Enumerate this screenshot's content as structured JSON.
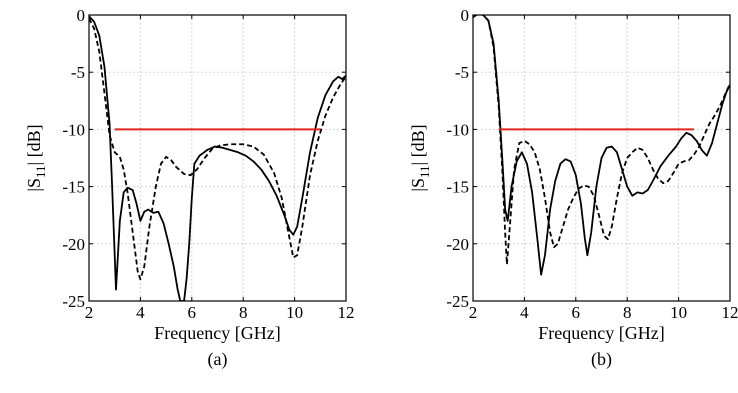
{
  "chart_data": [
    {
      "type": "line",
      "panel_label": "(a)",
      "xlabel": "Frequency [GHz]",
      "ylabel_main": "|S",
      "ylabel_sub": "11",
      "ylabel_tail": "| [dB]",
      "xlim": [
        2,
        12
      ],
      "ylim": [
        -25,
        0
      ],
      "xticks": [
        2,
        4,
        6,
        8,
        10,
        12
      ],
      "yticks": [
        0,
        -5,
        -10,
        -15,
        -20,
        -25
      ],
      "grid": true,
      "series": [
        {
          "style": "solid",
          "color": "#000000",
          "points": [
            [
              2.0,
              -0.1
            ],
            [
              2.2,
              -0.6
            ],
            [
              2.4,
              -1.8
            ],
            [
              2.6,
              -4.5
            ],
            [
              2.8,
              -9.5
            ],
            [
              2.9,
              -15.0
            ],
            [
              3.0,
              -21.0
            ],
            [
              3.05,
              -24.0
            ],
            [
              3.1,
              -22.0
            ],
            [
              3.2,
              -18.0
            ],
            [
              3.35,
              -15.5
            ],
            [
              3.5,
              -15.1
            ],
            [
              3.7,
              -15.3
            ],
            [
              3.85,
              -16.5
            ],
            [
              4.0,
              -18.0
            ],
            [
              4.15,
              -17.2
            ],
            [
              4.3,
              -17.0
            ],
            [
              4.5,
              -17.3
            ],
            [
              4.7,
              -17.2
            ],
            [
              4.9,
              -18.2
            ],
            [
              5.1,
              -20.0
            ],
            [
              5.3,
              -22.0
            ],
            [
              5.45,
              -24.0
            ],
            [
              5.55,
              -25.0
            ],
            [
              5.7,
              -25.0
            ],
            [
              5.8,
              -23.0
            ],
            [
              5.9,
              -20.0
            ],
            [
              6.0,
              -16.0
            ],
            [
              6.1,
              -13.0
            ],
            [
              6.3,
              -12.3
            ],
            [
              6.6,
              -11.8
            ],
            [
              6.9,
              -11.5
            ],
            [
              7.2,
              -11.6
            ],
            [
              7.5,
              -11.8
            ],
            [
              7.8,
              -12.0
            ],
            [
              8.1,
              -12.3
            ],
            [
              8.4,
              -12.8
            ],
            [
              8.7,
              -13.5
            ],
            [
              9.0,
              -14.5
            ],
            [
              9.3,
              -15.8
            ],
            [
              9.6,
              -17.5
            ],
            [
              9.8,
              -18.8
            ],
            [
              9.95,
              -19.2
            ],
            [
              10.1,
              -18.5
            ],
            [
              10.3,
              -16.0
            ],
            [
              10.6,
              -12.0
            ],
            [
              10.9,
              -9.0
            ],
            [
              11.2,
              -7.0
            ],
            [
              11.5,
              -5.8
            ],
            [
              11.7,
              -5.4
            ],
            [
              11.85,
              -5.6
            ],
            [
              12.0,
              -5.3
            ]
          ]
        },
        {
          "style": "dashed",
          "color": "#000000",
          "points": [
            [
              2.0,
              -0.3
            ],
            [
              2.2,
              -1.2
            ],
            [
              2.4,
              -3.2
            ],
            [
              2.6,
              -6.8
            ],
            [
              2.8,
              -10.5
            ],
            [
              3.0,
              -12.0
            ],
            [
              3.2,
              -12.4
            ],
            [
              3.35,
              -13.5
            ],
            [
              3.5,
              -15.5
            ],
            [
              3.7,
              -19.0
            ],
            [
              3.9,
              -22.5
            ],
            [
              4.0,
              -23.1
            ],
            [
              4.15,
              -22.0
            ],
            [
              4.35,
              -18.5
            ],
            [
              4.6,
              -15.0
            ],
            [
              4.8,
              -13.0
            ],
            [
              5.0,
              -12.4
            ],
            [
              5.2,
              -12.7
            ],
            [
              5.4,
              -13.3
            ],
            [
              5.7,
              -13.9
            ],
            [
              5.95,
              -14.0
            ],
            [
              6.2,
              -13.5
            ],
            [
              6.5,
              -12.5
            ],
            [
              6.8,
              -11.7
            ],
            [
              7.1,
              -11.4
            ],
            [
              7.5,
              -11.3
            ],
            [
              8.0,
              -11.3
            ],
            [
              8.4,
              -11.5
            ],
            [
              8.8,
              -12.2
            ],
            [
              9.2,
              -13.8
            ],
            [
              9.5,
              -16.0
            ],
            [
              9.8,
              -19.5
            ],
            [
              9.95,
              -21.2
            ],
            [
              10.1,
              -21.0
            ],
            [
              10.3,
              -18.5
            ],
            [
              10.6,
              -14.0
            ],
            [
              10.9,
              -11.0
            ],
            [
              11.2,
              -8.8
            ],
            [
              11.5,
              -7.2
            ],
            [
              11.8,
              -6.0
            ],
            [
              12.0,
              -5.4
            ]
          ]
        },
        {
          "style": "solid",
          "color": "#e3251b",
          "points": [
            [
              3.0,
              -10.0
            ],
            [
              11.0,
              -10.0
            ]
          ]
        }
      ]
    },
    {
      "type": "line",
      "panel_label": "(b)",
      "xlabel": "Frequency [GHz]",
      "ylabel_main": "|S",
      "ylabel_sub": "11",
      "ylabel_tail": "| [dB]",
      "xlim": [
        2,
        12
      ],
      "ylim": [
        -25,
        0
      ],
      "xticks": [
        2,
        4,
        6,
        8,
        10,
        12
      ],
      "yticks": [
        0,
        -5,
        -10,
        -15,
        -20,
        -25
      ],
      "grid": true,
      "series": [
        {
          "style": "solid",
          "color": "#000000",
          "points": [
            [
              2.0,
              -0.1
            ],
            [
              2.2,
              0.1
            ],
            [
              2.4,
              0.0
            ],
            [
              2.6,
              -0.5
            ],
            [
              2.8,
              -2.5
            ],
            [
              3.0,
              -7.5
            ],
            [
              3.15,
              -13.0
            ],
            [
              3.25,
              -17.0
            ],
            [
              3.35,
              -18.0
            ],
            [
              3.5,
              -15.0
            ],
            [
              3.7,
              -12.8
            ],
            [
              3.9,
              -12.0
            ],
            [
              4.1,
              -13.0
            ],
            [
              4.3,
              -15.5
            ],
            [
              4.5,
              -19.5
            ],
            [
              4.65,
              -22.7
            ],
            [
              4.8,
              -21.0
            ],
            [
              5.0,
              -17.0
            ],
            [
              5.2,
              -14.5
            ],
            [
              5.4,
              -13.0
            ],
            [
              5.6,
              -12.6
            ],
            [
              5.8,
              -12.8
            ],
            [
              6.0,
              -14.0
            ],
            [
              6.2,
              -16.5
            ],
            [
              6.35,
              -19.5
            ],
            [
              6.45,
              -21.0
            ],
            [
              6.6,
              -19.0
            ],
            [
              6.8,
              -15.0
            ],
            [
              7.0,
              -12.5
            ],
            [
              7.2,
              -11.6
            ],
            [
              7.4,
              -11.5
            ],
            [
              7.6,
              -12.0
            ],
            [
              7.8,
              -13.5
            ],
            [
              8.0,
              -15.0
            ],
            [
              8.2,
              -15.8
            ],
            [
              8.4,
              -15.5
            ],
            [
              8.6,
              -15.6
            ],
            [
              8.8,
              -15.3
            ],
            [
              9.0,
              -14.5
            ],
            [
              9.3,
              -13.2
            ],
            [
              9.6,
              -12.3
            ],
            [
              9.9,
              -11.5
            ],
            [
              10.1,
              -10.8
            ],
            [
              10.3,
              -10.3
            ],
            [
              10.5,
              -10.5
            ],
            [
              10.7,
              -11.0
            ],
            [
              10.9,
              -11.8
            ],
            [
              11.1,
              -12.3
            ],
            [
              11.3,
              -11.2
            ],
            [
              11.5,
              -9.5
            ],
            [
              11.7,
              -7.8
            ],
            [
              11.85,
              -6.8
            ],
            [
              12.0,
              -6.1
            ]
          ]
        },
        {
          "style": "dashed",
          "color": "#000000",
          "points": [
            [
              2.0,
              -0.2
            ],
            [
              2.2,
              0.1
            ],
            [
              2.4,
              0.0
            ],
            [
              2.6,
              -0.5
            ],
            [
              2.8,
              -2.8
            ],
            [
              3.0,
              -8.0
            ],
            [
              3.15,
              -14.0
            ],
            [
              3.25,
              -19.0
            ],
            [
              3.32,
              -21.8
            ],
            [
              3.45,
              -18.0
            ],
            [
              3.6,
              -13.5
            ],
            [
              3.8,
              -11.2
            ],
            [
              4.0,
              -11.0
            ],
            [
              4.2,
              -11.3
            ],
            [
              4.4,
              -12.0
            ],
            [
              4.6,
              -13.5
            ],
            [
              4.8,
              -16.0
            ],
            [
              5.0,
              -19.0
            ],
            [
              5.15,
              -20.3
            ],
            [
              5.3,
              -20.0
            ],
            [
              5.5,
              -18.5
            ],
            [
              5.7,
              -17.0
            ],
            [
              5.9,
              -16.0
            ],
            [
              6.1,
              -15.2
            ],
            [
              6.3,
              -14.9
            ],
            [
              6.5,
              -15.0
            ],
            [
              6.7,
              -15.8
            ],
            [
              6.9,
              -17.5
            ],
            [
              7.1,
              -19.3
            ],
            [
              7.25,
              -19.6
            ],
            [
              7.4,
              -18.5
            ],
            [
              7.6,
              -16.0
            ],
            [
              7.8,
              -13.8
            ],
            [
              8.0,
              -12.5
            ],
            [
              8.2,
              -12.0
            ],
            [
              8.4,
              -11.6
            ],
            [
              8.6,
              -11.8
            ],
            [
              8.8,
              -12.5
            ],
            [
              9.0,
              -13.5
            ],
            [
              9.2,
              -14.3
            ],
            [
              9.4,
              -14.7
            ],
            [
              9.6,
              -14.5
            ],
            [
              9.8,
              -13.8
            ],
            [
              10.0,
              -13.0
            ],
            [
              10.2,
              -12.8
            ],
            [
              10.4,
              -12.7
            ],
            [
              10.6,
              -12.2
            ],
            [
              10.8,
              -11.5
            ],
            [
              11.0,
              -10.5
            ],
            [
              11.2,
              -9.5
            ],
            [
              11.4,
              -8.8
            ],
            [
              11.6,
              -8.0
            ],
            [
              11.8,
              -7.0
            ],
            [
              12.0,
              -6.0
            ]
          ]
        },
        {
          "style": "solid",
          "color": "#e3251b",
          "points": [
            [
              3.0,
              -10.0
            ],
            [
              10.6,
              -10.0
            ]
          ]
        }
      ]
    }
  ]
}
